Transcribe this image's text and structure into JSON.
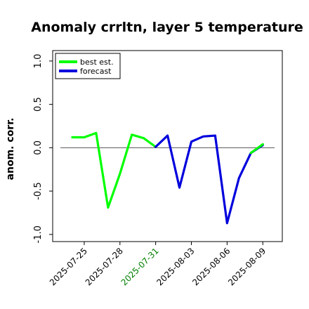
{
  "chart_data": {
    "type": "line",
    "title": "Anomaly crrltn, layer 5 temperature",
    "ylabel": "anom. corr.",
    "xlabel": "",
    "ylim": [
      -1.05,
      1.08
    ],
    "x_categories": [
      "2025-07-24",
      "2025-07-25",
      "2025-07-26",
      "2025-07-27",
      "2025-07-28",
      "2025-07-29",
      "2025-07-30",
      "2025-07-31",
      "2025-08-01",
      "2025-08-02",
      "2025-08-03",
      "2025-08-04",
      "2025-08-05",
      "2025-08-06",
      "2025-08-07",
      "2025-08-08",
      "2025-08-09"
    ],
    "xticks": [
      {
        "label": "2025-07-25",
        "color": "#000000"
      },
      {
        "label": "2025-07-28",
        "color": "#000000"
      },
      {
        "label": "2025-07-31",
        "color": "#008000"
      },
      {
        "label": "2025-08-03",
        "color": "#000000"
      },
      {
        "label": "2025-08-06",
        "color": "#000000"
      },
      {
        "label": "2025-08-09",
        "color": "#000000"
      }
    ],
    "yticks": [
      -1.0,
      -0.5,
      0.0,
      0.5,
      1.0
    ],
    "ytick_labels": [
      "-1.0",
      "-0.5",
      "0.0",
      "0.5",
      "1.0"
    ],
    "reference_line": 0.0,
    "legend_position": "upper-left",
    "series": [
      {
        "name": "best est.",
        "color": "#00ff00",
        "x": [
          "2025-07-24",
          "2025-07-25",
          "2025-07-26",
          "2025-07-27",
          "2025-07-28",
          "2025-07-29",
          "2025-07-30",
          "2025-07-31"
        ],
        "values": [
          0.12,
          0.12,
          0.17,
          -0.69,
          -0.3,
          0.15,
          0.11,
          0.01
        ]
      },
      {
        "name": "forecast",
        "color": "#0000dd",
        "x": [
          "2025-07-31",
          "2025-08-01",
          "2025-08-02",
          "2025-08-03",
          "2025-08-04",
          "2025-08-05",
          "2025-08-06",
          "2025-08-07",
          "2025-08-08",
          "2025-08-09"
        ],
        "values": [
          0.01,
          0.14,
          -0.46,
          0.07,
          0.13,
          0.14,
          -0.87,
          -0.35,
          -0.06,
          0.03
        ]
      },
      {
        "name": "",
        "color": "#00ff00",
        "x": [
          "2025-08-08",
          "2025-08-09"
        ],
        "values": [
          -0.06,
          0.04
        ]
      }
    ]
  }
}
